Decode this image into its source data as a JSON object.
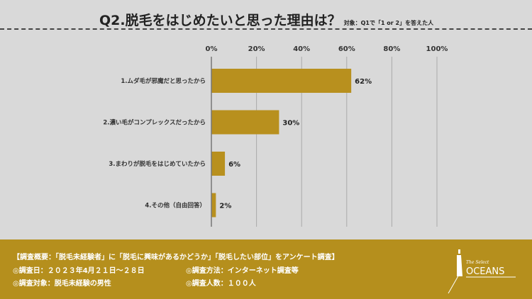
{
  "title": "Q2.脱毛をはじめたいと思った理由は？",
  "subtitle": "対象：Q1で「1 or 2」を答えた人",
  "chart_data": {
    "type": "bar",
    "orientation": "horizontal",
    "categories": [
      "1.ムダ毛が邪魔だと思ったから",
      "2.濃い毛がコンプレックスだったから",
      "3.まわりが脱毛をはじめていたから",
      "4.その他（自由回答）"
    ],
    "values": [
      62,
      30,
      6,
      2
    ],
    "data_labels": [
      "62%",
      "30%",
      "6%",
      "2%"
    ],
    "xlim": [
      0,
      100
    ],
    "ticks": [
      "0%",
      "20%",
      "40%",
      "60%",
      "80%",
      "100%"
    ],
    "grid": true,
    "bar_color": "#b8901e"
  },
  "footer": {
    "summary": "【調査概要：「脱毛未経験者」に「脱毛に興味があるかどうか」「脱毛したい部位」をアンケート調査】",
    "date": "◎調査日：２０２３年4月２１日〜２８日",
    "method": "◎調査方法：インターネット調査等",
    "target": "◎調査対象：脱毛未経験の男性",
    "count": "◎調査人数：１００人",
    "logo": "OCEANS",
    "logo_script": "The Select"
  }
}
